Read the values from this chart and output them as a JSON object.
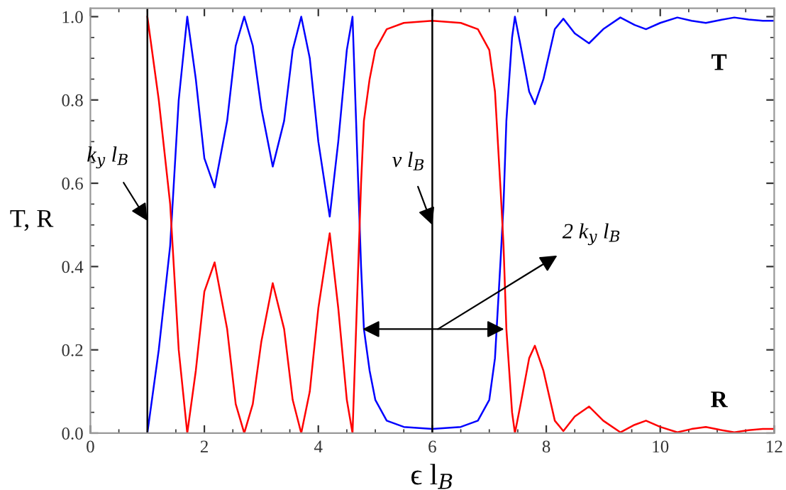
{
  "chart_data": {
    "type": "line",
    "xlabel": "ϵ l$_{B}$",
    "ylabel": "T, R",
    "xlim": [
      0,
      12
    ],
    "ylim": [
      0,
      1.02
    ],
    "xticks": [
      0,
      2,
      4,
      6,
      8,
      10,
      12
    ],
    "yticks": [
      {
        "value": 0,
        "label": "0.0"
      },
      {
        "value": 0.2,
        "label": "0.2"
      },
      {
        "value": 0.4,
        "label": "0.4"
      },
      {
        "value": 0.6,
        "label": "0.6"
      },
      {
        "value": 0.8,
        "label": "0.8"
      },
      {
        "value": 1,
        "label": "1.0"
      }
    ],
    "grid": false,
    "legend": false,
    "marker": "none",
    "line_style": "solid",
    "series": [
      {
        "name": "T",
        "color": "#0000ff",
        "x": [
          1.0,
          1.2,
          1.4,
          1.55,
          1.7,
          1.85,
          2.0,
          2.18,
          2.4,
          2.55,
          2.7,
          2.85,
          3.0,
          3.2,
          3.4,
          3.55,
          3.7,
          3.85,
          4.0,
          4.2,
          4.35,
          4.5,
          4.6,
          4.7,
          4.75,
          4.8,
          4.9,
          5.0,
          5.2,
          5.5,
          6.0,
          6.5,
          6.8,
          7.0,
          7.1,
          7.2,
          7.25,
          7.3,
          7.4,
          7.45,
          7.55,
          7.7,
          7.8,
          7.95,
          8.15,
          8.3,
          8.5,
          8.75,
          9.0,
          9.3,
          9.55,
          9.75,
          10.0,
          10.3,
          10.55,
          10.8,
          11.05,
          11.3,
          11.55,
          11.8,
          12.0
        ],
        "values": [
          0.0,
          0.2,
          0.45,
          0.8,
          1.0,
          0.85,
          0.66,
          0.59,
          0.75,
          0.93,
          1.0,
          0.93,
          0.78,
          0.64,
          0.75,
          0.92,
          1.0,
          0.9,
          0.7,
          0.52,
          0.7,
          0.92,
          1.0,
          0.6,
          0.4,
          0.25,
          0.15,
          0.08,
          0.03,
          0.015,
          0.01,
          0.015,
          0.03,
          0.08,
          0.18,
          0.42,
          0.55,
          0.75,
          0.95,
          1.0,
          0.93,
          0.82,
          0.79,
          0.85,
          0.97,
          0.995,
          0.96,
          0.936,
          0.97,
          0.998,
          0.98,
          0.97,
          0.985,
          0.998,
          0.99,
          0.985,
          0.992,
          0.998,
          0.993,
          0.99,
          0.99
        ]
      },
      {
        "name": "R",
        "color": "#ff0000",
        "x": [
          1.0,
          1.2,
          1.4,
          1.55,
          1.7,
          1.85,
          2.0,
          2.18,
          2.4,
          2.55,
          2.7,
          2.85,
          3.0,
          3.2,
          3.4,
          3.55,
          3.7,
          3.85,
          4.0,
          4.2,
          4.35,
          4.5,
          4.6,
          4.7,
          4.75,
          4.8,
          4.9,
          5.0,
          5.2,
          5.5,
          6.0,
          6.5,
          6.8,
          7.0,
          7.1,
          7.2,
          7.25,
          7.3,
          7.4,
          7.45,
          7.55,
          7.7,
          7.8,
          7.95,
          8.15,
          8.3,
          8.5,
          8.75,
          9.0,
          9.3,
          9.55,
          9.75,
          10.0,
          10.3,
          10.55,
          10.8,
          11.05,
          11.3,
          11.55,
          11.8,
          12.0
        ],
        "values": [
          1.0,
          0.8,
          0.55,
          0.2,
          0.0,
          0.15,
          0.34,
          0.41,
          0.25,
          0.07,
          0.0,
          0.07,
          0.22,
          0.36,
          0.25,
          0.08,
          0.0,
          0.1,
          0.3,
          0.48,
          0.3,
          0.08,
          0.0,
          0.4,
          0.6,
          0.75,
          0.85,
          0.92,
          0.97,
          0.985,
          0.99,
          0.985,
          0.97,
          0.92,
          0.82,
          0.58,
          0.45,
          0.25,
          0.05,
          0.0,
          0.07,
          0.18,
          0.21,
          0.15,
          0.03,
          0.005,
          0.04,
          0.064,
          0.03,
          0.002,
          0.02,
          0.03,
          0.015,
          0.002,
          0.01,
          0.015,
          0.008,
          0.002,
          0.007,
          0.01,
          0.01
        ]
      }
    ],
    "ref_lines": [
      {
        "axis": "x",
        "value": 1,
        "color": "#000000"
      },
      {
        "axis": "x",
        "value": 6,
        "color": "#000000"
      }
    ],
    "annotations": [
      {
        "text": "k$_{y}$ l$_{B}$",
        "x": 1,
        "y": 0.51
      },
      {
        "text": "ν l$_{B}$",
        "x": 6,
        "y": 0.5
      },
      {
        "text": "2 k$_{y}$ l$_{B}$",
        "x": 6.1,
        "y": 0.25
      }
    ]
  }
}
